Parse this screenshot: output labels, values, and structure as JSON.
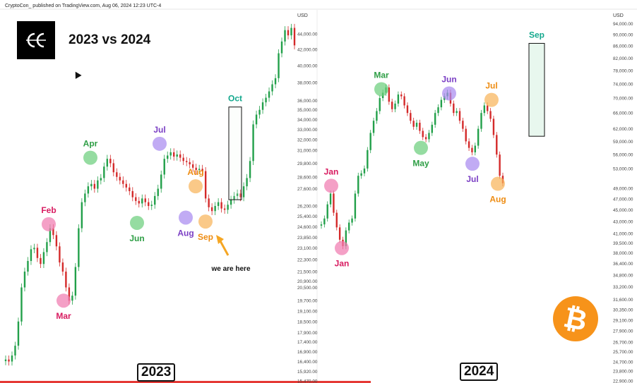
{
  "header": {
    "attribution": "CryptoCon_ published on TradingView.com, Aug 06, 2024 12:23 UTC-4"
  },
  "title": "2023 vs 2024",
  "year_left": "2023",
  "year_right": "2024",
  "annotation": "we are here",
  "colors": {
    "up": "#22a04a",
    "down": "#d42a2a",
    "pink": "#f07bb0",
    "green": "#6ccf7d",
    "purple": "#a98af0",
    "orange": "#f8b45a",
    "teal": "#13a88d",
    "bitcoin": "#f7931a"
  },
  "chart_data": [
    {
      "type": "line",
      "title": "2023",
      "axis_label": "USD",
      "ylim": [
        15470,
        46500
      ],
      "y_ticks": [
        44000,
        42000,
        40000,
        38000,
        36000,
        35000,
        34000,
        33000,
        32000,
        31000,
        29800,
        28600,
        27600,
        26200,
        25400,
        24600,
        23850,
        23100,
        22300,
        21500,
        20900,
        20500,
        19700,
        19100,
        18500,
        17900,
        17400,
        16900,
        16400,
        15920,
        15470
      ],
      "y_tick_labels": [
        "44,000.00",
        "42,000.00",
        "40,000.00",
        "38,000.00",
        "36,000.00",
        "35,000.00",
        "34,000.00",
        "33,000.00",
        "32,000.00",
        "31,000.00",
        "29,800.00",
        "28,600.00",
        "27,600.00",
        "26,200.00",
        "25,400.00",
        "24,600.00",
        "23,850.00",
        "23,100.00",
        "22,300.00",
        "21,500.00",
        "20,900.00",
        "20,500.00",
        "19,700.00",
        "19,100.00",
        "18,500.00",
        "17,900.00",
        "17,400.00",
        "16,900.00",
        "16,400.00",
        "15,920.00",
        "15,470.00"
      ],
      "series": [
        {
          "values": [
            16500,
            16400,
            16700,
            17200,
            18500,
            20500,
            21500,
            22200,
            23000,
            23100,
            22400,
            22000,
            22800,
            23500,
            24500,
            24000,
            23200,
            22100,
            21500,
            20500,
            19700,
            20000,
            21800,
            24500,
            26500,
            27200,
            27800,
            28000,
            27600,
            28300,
            28500,
            29500,
            30200,
            29800,
            29000,
            28600,
            28300,
            28000,
            27700,
            27400,
            26900,
            26600,
            26400,
            26800,
            26500,
            26200,
            26300,
            27000,
            27600,
            28800,
            30200,
            30500,
            30800,
            30400,
            30600,
            30300,
            30000,
            29900,
            29700,
            29400,
            29200,
            29300,
            29100,
            26800,
            26100,
            25800,
            26200,
            26500,
            26000,
            25900,
            26300,
            26700,
            27000,
            27200,
            26900,
            27800,
            28500,
            30000,
            33500,
            34500,
            35000,
            35800,
            36300,
            37000,
            37800,
            38500,
            41500,
            43000,
            44500,
            43800,
            44800,
            42500
          ]
        }
      ],
      "points": [
        {
          "label": "Feb",
          "value": 24800,
          "color": "pink"
        },
        {
          "label": "Mar",
          "value": 19700,
          "color": "pink"
        },
        {
          "label": "Apr",
          "value": 30300,
          "color": "green"
        },
        {
          "label": "Jun",
          "value": 24900,
          "color": "green"
        },
        {
          "label": "Jul",
          "value": 31600,
          "color": "purple"
        },
        {
          "label": "Aug",
          "value": 25300,
          "color": "purple"
        },
        {
          "label": "Aug",
          "value": 27800,
          "color": "orange"
        },
        {
          "label": "Sep",
          "value": 25000,
          "color": "orange"
        }
      ],
      "highlight": {
        "label": "Oct",
        "low": 26700,
        "high": 35300,
        "color": "teal"
      }
    },
    {
      "type": "line",
      "title": "2024",
      "axis_label": "USD",
      "ylim": [
        22900,
        97000
      ],
      "y_ticks": [
        94000,
        90000,
        86000,
        82000,
        78000,
        74000,
        70000,
        66000,
        62000,
        59000,
        56000,
        53000,
        49000,
        47000,
        45000,
        43000,
        41000,
        39500,
        38000,
        36400,
        34800,
        33200,
        31600,
        30350,
        29100,
        27900,
        26700,
        25700,
        24700,
        23800,
        22900
      ],
      "y_tick_labels": [
        "94,000.00",
        "90,000.00",
        "86,000.00",
        "82,000.00",
        "78,000.00",
        "74,000.00",
        "70,000.00",
        "66,000.00",
        "62,000.00",
        "59,000.00",
        "56,000.00",
        "53,000.00",
        "49,000.00",
        "47,000.00",
        "45,000.00",
        "43,000.00",
        "41,000.00",
        "39,500.00",
        "38,000.00",
        "36,400.00",
        "34,800.00",
        "33,200.00",
        "31,600.00",
        "30,350.00",
        "29,100.00",
        "27,900.00",
        "26,700.00",
        "25,700.00",
        "24,700.00",
        "23,800.00",
        "22,900.00"
      ],
      "series": [
        {
          "values": [
            42500,
            43500,
            46000,
            48000,
            44500,
            42000,
            40000,
            39000,
            41500,
            42800,
            43500,
            48000,
            51500,
            52000,
            53000,
            57000,
            61000,
            64000,
            66500,
            70000,
            71500,
            73000,
            69000,
            67000,
            68500,
            71000,
            70500,
            68000,
            66000,
            64000,
            62500,
            63500,
            61500,
            60000,
            59500,
            61000,
            63000,
            66000,
            67500,
            69500,
            70500,
            71500,
            68500,
            66000,
            66500,
            64000,
            62000,
            59000,
            57500,
            56500,
            58000,
            62000,
            66000,
            68000,
            66500,
            64500,
            60500,
            56000,
            51500,
            50000
          ]
        }
      ],
      "points": [
        {
          "label": "Jan",
          "value": 49500,
          "color": "pink"
        },
        {
          "label": "Jan",
          "value": 38700,
          "color": "pink"
        },
        {
          "label": "Mar",
          "value": 72500,
          "color": "green"
        },
        {
          "label": "May",
          "value": 57500,
          "color": "green"
        },
        {
          "label": "Jun",
          "value": 71300,
          "color": "purple"
        },
        {
          "label": "Jul",
          "value": 54000,
          "color": "purple"
        },
        {
          "label": "Jul",
          "value": 69500,
          "color": "orange"
        },
        {
          "label": "Aug",
          "value": 49900,
          "color": "orange"
        }
      ],
      "highlight": {
        "label": "Sep",
        "low": 60200,
        "high": 86900,
        "color": "teal"
      }
    }
  ]
}
